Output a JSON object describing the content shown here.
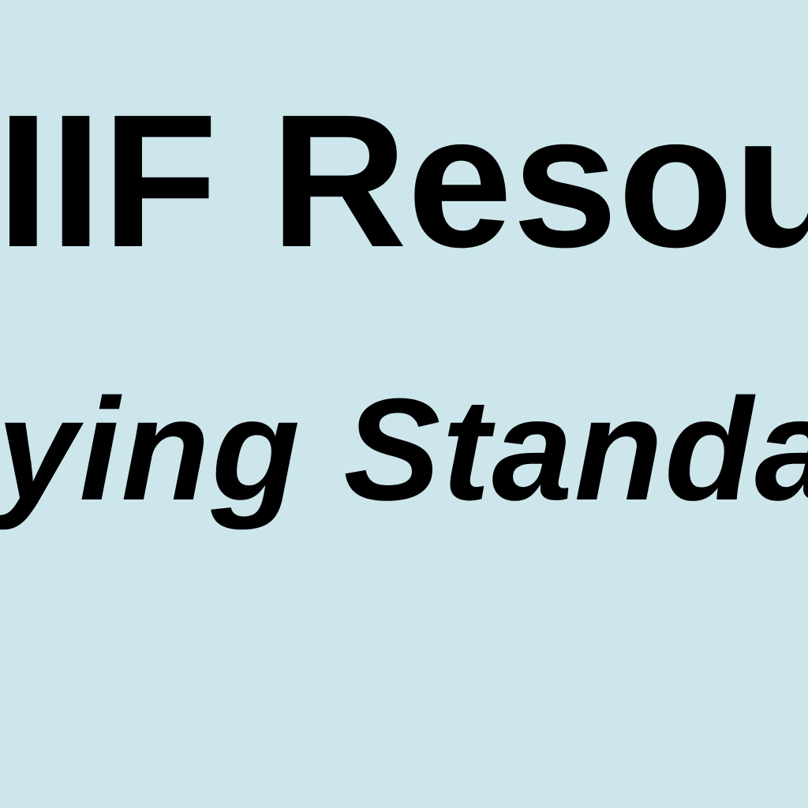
{
  "slide": {
    "background_color": "#cce6ec",
    "text_color": "#000000",
    "title_visible": "IIF Resou",
    "subtitle_visible": "ying Standa"
  }
}
